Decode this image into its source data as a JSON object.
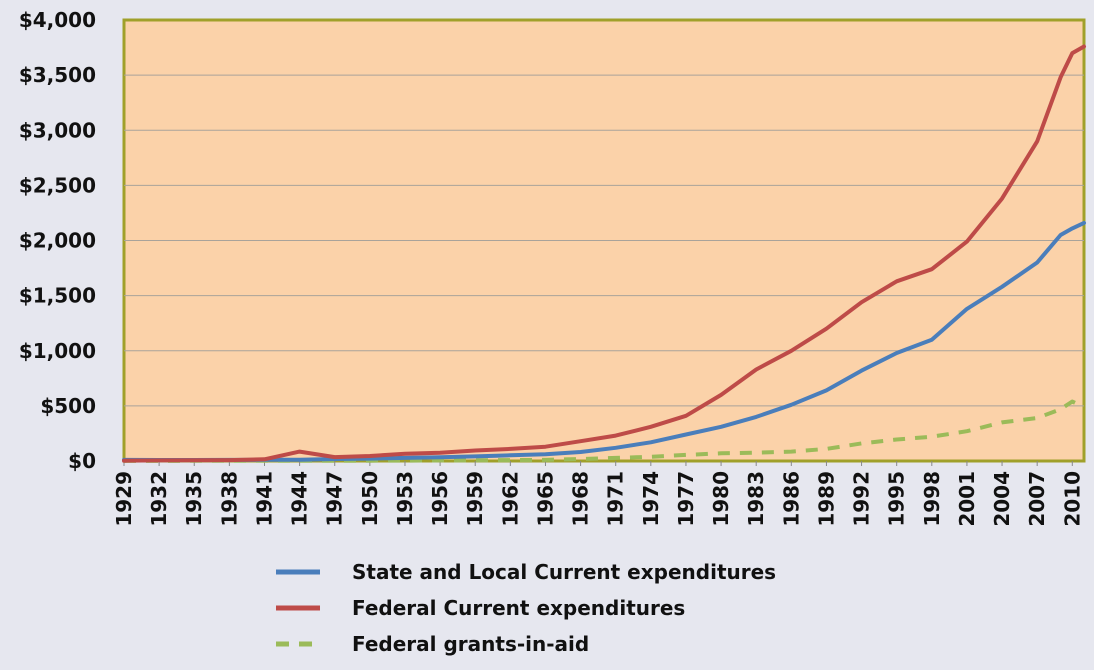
{
  "chart_data": {
    "type": "line",
    "title": "",
    "xlabel": "",
    "ylabel": "",
    "ylim": [
      0,
      4000
    ],
    "y_ticks": [
      "$0",
      "$500",
      "$1,000",
      "$1,500",
      "$2,000",
      "$2,500",
      "$3,000",
      "$3,500",
      "$4,000"
    ],
    "x_tick_labels": [
      "1929",
      "1932",
      "1935",
      "1938",
      "1941",
      "1944",
      "1947",
      "1950",
      "1953",
      "1956",
      "1959",
      "1962",
      "1965",
      "1968",
      "1971",
      "1974",
      "1977",
      "1980",
      "1983",
      "1986",
      "1989",
      "1992",
      "1995",
      "1998",
      "2001",
      "2004",
      "2007",
      "2010"
    ],
    "x": [
      1929,
      1932,
      1935,
      1938,
      1941,
      1944,
      1947,
      1950,
      1953,
      1956,
      1959,
      1962,
      1965,
      1968,
      1971,
      1974,
      1977,
      1980,
      1983,
      1986,
      1989,
      1992,
      1995,
      1998,
      2001,
      2004,
      2007,
      2009,
      2010,
      2011
    ],
    "grid": "horizontal",
    "legend_position": "bottom",
    "plot_background": "#fbd2a9",
    "series": [
      {
        "name": "State and Local Current expenditures",
        "color": "#4a7ebb",
        "dash": "solid",
        "values": [
          10,
          9,
          9,
          10,
          11,
          12,
          18,
          22,
          28,
          34,
          42,
          52,
          62,
          82,
          120,
          170,
          240,
          310,
          400,
          510,
          640,
          820,
          980,
          1100,
          1380,
          1580,
          1800,
          2050,
          2110,
          2160
        ]
      },
      {
        "name": "Federal Current expenditures",
        "color": "#be4b48",
        "dash": "solid",
        "values": [
          3,
          5,
          7,
          8,
          15,
          85,
          35,
          45,
          65,
          75,
          95,
          110,
          130,
          180,
          230,
          310,
          410,
          600,
          830,
          1000,
          1200,
          1440,
          1630,
          1740,
          1990,
          2380,
          2900,
          3480,
          3700,
          3760
        ]
      },
      {
        "name": "Federal grants-in-aid",
        "color": "#9bbb59",
        "dash": "dashed",
        "values": [
          1,
          1,
          2,
          2,
          3,
          2,
          3,
          3,
          4,
          5,
          6,
          8,
          10,
          18,
          28,
          38,
          55,
          70,
          75,
          85,
          110,
          160,
          195,
          220,
          270,
          350,
          390,
          470,
          540,
          490
        ]
      }
    ]
  }
}
